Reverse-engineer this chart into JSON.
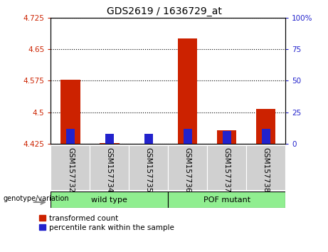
{
  "title": "GDS2619 / 1636729_at",
  "samples": [
    "GSM157732",
    "GSM157734",
    "GSM157735",
    "GSM157736",
    "GSM157737",
    "GSM157738"
  ],
  "transformed_counts": [
    4.578,
    4.427,
    4.422,
    4.675,
    4.457,
    4.508
  ],
  "percentile_ranks": [
    12,
    8,
    8,
    12,
    10,
    12
  ],
  "y_min": 4.425,
  "y_max": 4.725,
  "y_ticks": [
    4.425,
    4.5,
    4.575,
    4.65,
    4.725
  ],
  "y_tick_labels": [
    "4.425",
    "4.5",
    "4.575",
    "4.65",
    "4.725"
  ],
  "y2_ticks": [
    0,
    25,
    50,
    75,
    100
  ],
  "y2_tick_labels": [
    "0",
    "25",
    "50",
    "75",
    "100%"
  ],
  "bar_color_red": "#CC2200",
  "bar_color_blue": "#2222CC",
  "bar_width": 0.5,
  "blue_bar_width": 0.22,
  "legend_red": "transformed count",
  "legend_blue": "percentile rank within the sample",
  "left_tick_color": "#CC2200",
  "right_tick_color": "#2222CC",
  "bg_group_bar": "#90EE90",
  "bg_xtick": "#D0D0D0",
  "wild_type_label": "wild type",
  "pof_label": "POF mutant",
  "genotype_label": "genotype/variation"
}
